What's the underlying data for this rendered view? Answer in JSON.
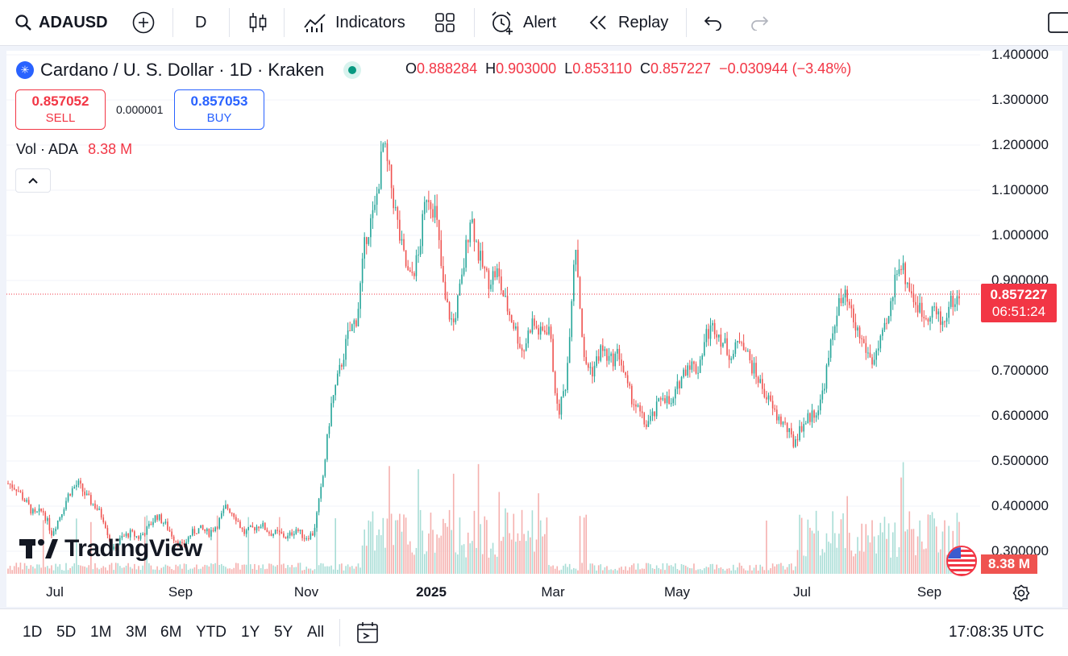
{
  "toolbar": {
    "symbol": "ADAUSD",
    "interval": "D",
    "indicators_label": "Indicators",
    "alert_label": "Alert",
    "replay_label": "Replay"
  },
  "legend": {
    "title": "Cardano / U. S. Dollar · 1D · Kraken",
    "o_label": "O",
    "o_value": "0.888284",
    "h_label": "H",
    "h_value": "0.903000",
    "l_label": "L",
    "l_value": "0.853110",
    "c_label": "C",
    "c_value": "0.857227",
    "change": "−0.030944 (−3.48%)",
    "vol_label": "Vol · ADA",
    "vol_value": "8.38 M"
  },
  "trade": {
    "sell_price": "0.857052",
    "sell_label": "SELL",
    "spread": "0.000001",
    "buy_price": "0.857053",
    "buy_label": "BUY"
  },
  "price_axis": {
    "labels": [
      "1.400000",
      "1.300000",
      "1.200000",
      "1.100000",
      "1.000000",
      "0.900000",
      "0.700000",
      "0.600000",
      "0.500000",
      "0.400000",
      "0.300000"
    ],
    "current_price": "0.857227",
    "countdown": "06:51:24",
    "volume_tag": "8.38 M"
  },
  "time_axis": {
    "labels": [
      "Jul",
      "Sep",
      "Nov",
      "2025",
      "Mar",
      "May",
      "Jul",
      "Sep"
    ]
  },
  "watermark": "TradingView",
  "bottom": {
    "timeframes": [
      "1D",
      "5D",
      "1M",
      "3M",
      "6M",
      "YTD",
      "1Y",
      "5Y",
      "All"
    ],
    "clock": "17:08:35 UTC"
  },
  "colors": {
    "up": "#26a69a",
    "down": "#ef5350",
    "accent": "#2962ff",
    "price_tag": "#f23645"
  },
  "chart_data": {
    "type": "candlestick",
    "ylim": [
      0.25,
      1.45
    ],
    "close_series": [
      0.45,
      0.44,
      0.41,
      0.38,
      0.39,
      0.34,
      0.38,
      0.43,
      0.45,
      0.42,
      0.4,
      0.37,
      0.3,
      0.33,
      0.34,
      0.33,
      0.35,
      0.38,
      0.36,
      0.33,
      0.31,
      0.34,
      0.35,
      0.34,
      0.36,
      0.4,
      0.38,
      0.34,
      0.35,
      0.36,
      0.34,
      0.34,
      0.33,
      0.35,
      0.33,
      0.34,
      0.45,
      0.62,
      0.7,
      0.78,
      0.82,
      1.0,
      1.05,
      1.2,
      1.1,
      0.98,
      0.9,
      0.95,
      1.1,
      1.05,
      0.86,
      0.8,
      0.9,
      1.05,
      0.95,
      0.9,
      0.92,
      0.85,
      0.8,
      0.74,
      0.81,
      0.78,
      0.8,
      0.6,
      0.68,
      1.0,
      0.72,
      0.7,
      0.75,
      0.72,
      0.74,
      0.66,
      0.62,
      0.58,
      0.6,
      0.65,
      0.62,
      0.68,
      0.72,
      0.7,
      0.78,
      0.8,
      0.76,
      0.73,
      0.78,
      0.72,
      0.68,
      0.64,
      0.6,
      0.58,
      0.54,
      0.58,
      0.6,
      0.62,
      0.72,
      0.84,
      0.86,
      0.8,
      0.76,
      0.72,
      0.76,
      0.82,
      0.95,
      0.9,
      0.85,
      0.82,
      0.84,
      0.8,
      0.85,
      0.86
    ]
  }
}
